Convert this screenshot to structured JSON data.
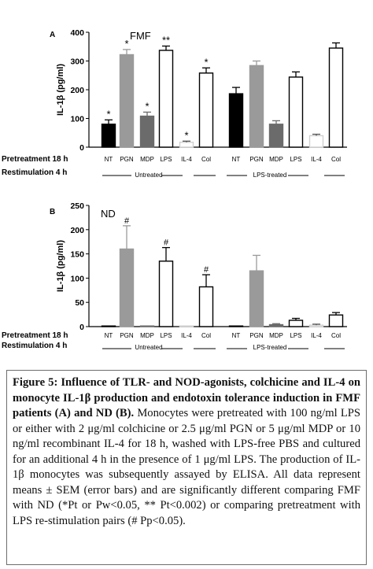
{
  "chart_data": [
    {
      "panel_letter": "A",
      "panel_label": "FMF",
      "type": "bar",
      "ylabel": "IL-1β (pg/ml)",
      "ylim": [
        0,
        400
      ],
      "yticks": [
        "0",
        "100",
        "200",
        "300",
        "400"
      ],
      "categories": [
        "NT",
        "PGN",
        "MDP",
        "LPS",
        "IL-4",
        "Col",
        "NT",
        "PGN",
        "MDP",
        "LPS",
        "IL-4",
        "Col"
      ],
      "values": [
        80,
        322,
        108,
        337,
        17,
        258,
        186,
        284,
        80,
        244,
        40,
        345
      ],
      "errors": [
        15,
        18,
        14,
        15,
        4,
        18,
        22,
        16,
        12,
        18,
        5,
        18
      ],
      "fills": [
        "#000000",
        "#9a9a9a",
        "#6b6b6b",
        "#ffffff",
        "#ffffff",
        "#ffffff",
        "#000000",
        "#9a9a9a",
        "#6b6b6b",
        "#ffffff",
        "#ffffff",
        "#ffffff"
      ],
      "strokes": [
        "#000000",
        "#9a9a9a",
        "#6b6b6b",
        "#000000",
        "#d0d0d0",
        "#000000",
        "#000000",
        "#9a9a9a",
        "#6b6b6b",
        "#000000",
        "#d0d0d0",
        "#000000"
      ],
      "annotations": [
        "*",
        "*",
        "*",
        "**",
        "*",
        "*",
        "",
        "",
        "",
        "",
        "",
        ""
      ],
      "row1_label": "Pretreatment 18 h",
      "row2_label": "Restimulation 4 h",
      "group_labels": [
        "Untreated",
        "LPS-treated"
      ]
    },
    {
      "panel_letter": "B",
      "panel_label": "ND",
      "type": "bar",
      "ylabel": "IL-1β (pg/ml)",
      "ylim": [
        0,
        250
      ],
      "yticks": [
        "0",
        "50",
        "100",
        "150",
        "200",
        "250"
      ],
      "categories": [
        "NT",
        "PGN",
        "MDP",
        "LPS",
        "IL-4",
        "Col",
        "NT",
        "PGN",
        "MDP",
        "LPS",
        "IL-4",
        "Col"
      ],
      "values": [
        1,
        160,
        1,
        135,
        1,
        82,
        1,
        115,
        4,
        13,
        3,
        24
      ],
      "errors": [
        0,
        48,
        0,
        28,
        0,
        25,
        0,
        32,
        2,
        4,
        2,
        5
      ],
      "fills": [
        "#000000",
        "#9a9a9a",
        "#6b6b6b",
        "#ffffff",
        "#ffffff",
        "#ffffff",
        "#000000",
        "#9a9a9a",
        "#6b6b6b",
        "#ffffff",
        "#ffffff",
        "#ffffff"
      ],
      "strokes": [
        "#000000",
        "#9a9a9a",
        "#6b6b6b",
        "#000000",
        "#d0d0d0",
        "#000000",
        "#000000",
        "#9a9a9a",
        "#6b6b6b",
        "#000000",
        "#d0d0d0",
        "#000000"
      ],
      "annotations": [
        "",
        "#",
        "",
        "#",
        "",
        "#",
        "",
        "",
        "",
        "",
        "",
        ""
      ],
      "row1_label": "Pretreatment 18 h",
      "row2_label": "Restimulation 4 h",
      "group_labels": [
        "Untreated",
        "LPS-treated"
      ]
    }
  ],
  "caption": {
    "title": "Figure 5: Influence of TLR- and NOD-agonists, colchicine and IL-4 on monocyte IL-1β production and endotoxin tolerance induction in FMF patients (A) and ND (B).",
    "body": " Monocytes were pretreated with 100 ng/ml LPS or either with 2 μg/ml colchicine or 2.5 μg/ml PGN or 5 μg/ml MDP or 10 ng/ml recombinant IL-4 for 18 h, washed with LPS-free PBS and cultured for an additional 4 h in the presence of 1 μg/ml LPS. The production of IL-1β monocytes was subsequently assayed by ELISA. All data represent means ± SEM (error bars) and are significantly different comparing FMF with ND (*Pt or Pw<0.05, ** Pt<0.002) or comparing pretreatment with LPS re-stimulation pairs (# Pp<0.05)."
  }
}
